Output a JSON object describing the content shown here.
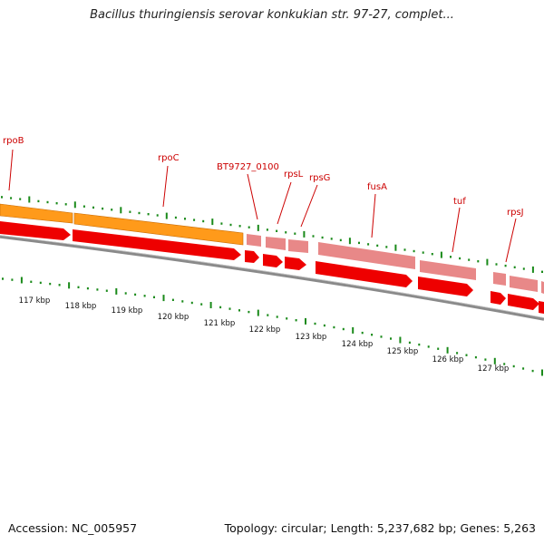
{
  "title": "Bacillus thuringiensis serovar konkukian str. 97-27, complet...",
  "footer": {
    "accession": "Accession: NC_005957",
    "summary": "Topology: circular; Length: 5,237,682 bp; Genes: 5,263"
  },
  "colors": {
    "cds_forward": "#ff9a1a",
    "cds_reverse": "#ee0000",
    "rna": "#e88888",
    "backbone": "#8a8a8a",
    "ticks": "#1a8a1a",
    "gene_label": "#cc0000"
  },
  "scale_labels": [
    "117 kbp",
    "118 kbp",
    "119 kbp",
    "120 kbp",
    "121 kbp",
    "122 kbp",
    "123 kbp",
    "124 kbp",
    "125 kbp",
    "126 kbp",
    "127 kbp"
  ],
  "gene_labels": [
    "rpoB",
    "rpoC",
    "BT9727_0100",
    "rpsL",
    "rpsG",
    "fusA",
    "tuf",
    "rpsJ"
  ]
}
